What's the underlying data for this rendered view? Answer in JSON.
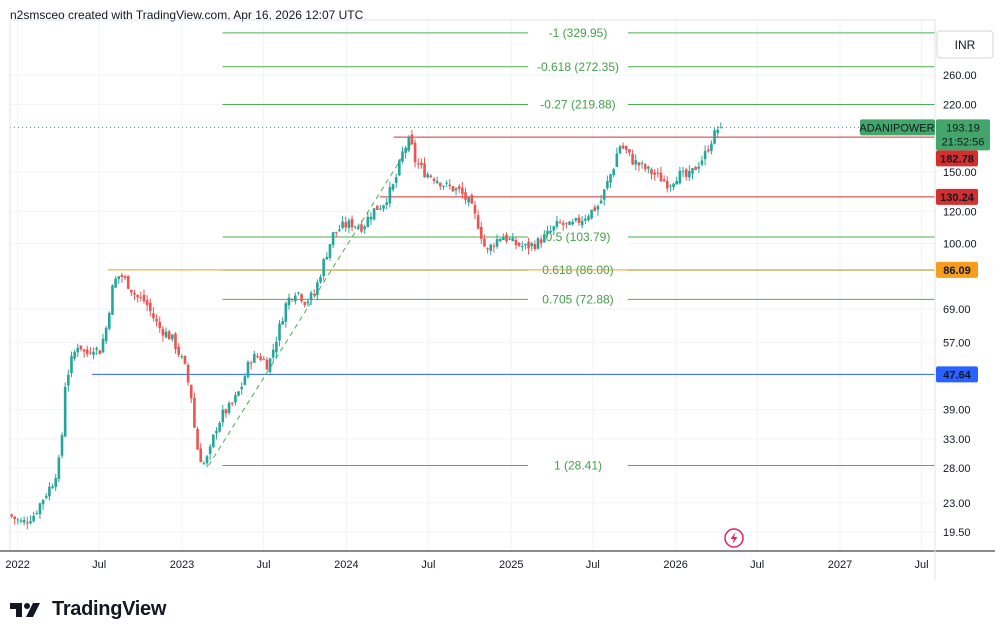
{
  "header": {
    "text": "n2smsceo created with TradingView.com, Apr 16, 2026 12:07 UTC"
  },
  "currency": "INR",
  "brand": "TradingView",
  "colors": {
    "up": "#26a69a",
    "down": "#ef5350",
    "fib": "#4caf50",
    "fib_text": "#43a047",
    "resistance": "#d32f2f",
    "orange": "#f59d1c",
    "blue": "#2962ff",
    "symbol_tag": "#42a66a"
  },
  "chart_data": {
    "type": "candlestick",
    "symbol": "ADANIPOWER",
    "y_scale": "log",
    "y_range": [
      17.5,
      355
    ],
    "x_range": [
      "2021-12-15",
      "2027-07-31"
    ],
    "y_ticks": [
      "260.00",
      "220.00",
      "150.00",
      "120.00",
      "100.00",
      "69.00",
      "57.00",
      "39.00",
      "33.00",
      "28.00",
      "23.00",
      "19.50"
    ],
    "x_ticks": [
      {
        "label": "2022",
        "date": "2022-01-01"
      },
      {
        "label": "Jul",
        "date": "2022-07-01"
      },
      {
        "label": "2023",
        "date": "2023-01-01"
      },
      {
        "label": "Jul",
        "date": "2023-07-01"
      },
      {
        "label": "2024",
        "date": "2024-01-01"
      },
      {
        "label": "Jul",
        "date": "2024-07-01"
      },
      {
        "label": "2025",
        "date": "2025-01-01"
      },
      {
        "label": "Jul",
        "date": "2025-07-01"
      },
      {
        "label": "2026",
        "date": "2026-01-01"
      },
      {
        "label": "Jul",
        "date": "2026-07-01"
      },
      {
        "label": "2027",
        "date": "2027-01-01"
      },
      {
        "label": "Jul",
        "date": "2027-07-01"
      }
    ],
    "fib_levels": [
      {
        "label": "-1 (329.95)",
        "value": 329.95
      },
      {
        "label": "-0.618 (272.35)",
        "value": 272.35
      },
      {
        "label": "-0.27 (219.88)",
        "value": 219.88
      },
      {
        "label": "0.5 (103.79)",
        "value": 103.79
      },
      {
        "label": "0.618 (86.00)",
        "value": 86.0
      },
      {
        "label": "0.705 (72.88)",
        "value": 72.88
      },
      {
        "label": "1 (28.41)",
        "value": 28.41
      }
    ],
    "fib_start_date": "2023-04-01",
    "horizontal_levels": [
      {
        "value": 182.78,
        "label": "182.78",
        "color": "#d32f2f",
        "from": "2024-04-15"
      },
      {
        "value": 130.24,
        "label": "130.24",
        "color": "#d32f2f",
        "from": "2024-03-15"
      },
      {
        "value": 86.09,
        "label": "86.09",
        "color": "#f59d1c",
        "from": "2022-07-20"
      },
      {
        "value": 47.64,
        "label": "47.64",
        "color": "#2962ff",
        "from": "2022-06-15"
      }
    ],
    "last_price": {
      "symbol": "ADANIPOWER",
      "value": 193.19,
      "countdown": "21:52:56"
    },
    "trend_line": [
      {
        "date": "2023-03-01",
        "value": 28.41
      },
      {
        "date": "2024-06-01",
        "value": 182.78
      }
    ],
    "price_path": [
      [
        "2021-12-15",
        21.5
      ],
      [
        "2022-01-15",
        20.5
      ],
      [
        "2022-02-10",
        21.5
      ],
      [
        "2022-03-01",
        23.5
      ],
      [
        "2022-03-25",
        26
      ],
      [
        "2022-04-10",
        30
      ],
      [
        "2022-04-20",
        45
      ],
      [
        "2022-05-05",
        52
      ],
      [
        "2022-05-20",
        57
      ],
      [
        "2022-06-05",
        53
      ],
      [
        "2022-06-20",
        56
      ],
      [
        "2022-07-05",
        54
      ],
      [
        "2022-07-20",
        62
      ],
      [
        "2022-08-05",
        80
      ],
      [
        "2022-08-20",
        84
      ],
      [
        "2022-09-05",
        80
      ],
      [
        "2022-09-25",
        74
      ],
      [
        "2022-10-15",
        72
      ],
      [
        "2022-11-01",
        66
      ],
      [
        "2022-11-15",
        62
      ],
      [
        "2022-12-01",
        60
      ],
      [
        "2022-12-15",
        58
      ],
      [
        "2023-01-10",
        50
      ],
      [
        "2023-01-25",
        42
      ],
      [
        "2023-02-05",
        32
      ],
      [
        "2023-02-20",
        28.5
      ],
      [
        "2023-03-05",
        30
      ],
      [
        "2023-03-20",
        35
      ],
      [
        "2023-04-05",
        38
      ],
      [
        "2023-04-25",
        40
      ],
      [
        "2023-05-15",
        44
      ],
      [
        "2023-06-05",
        52
      ],
      [
        "2023-06-25",
        53
      ],
      [
        "2023-07-15",
        50
      ],
      [
        "2023-08-05",
        60
      ],
      [
        "2023-08-25",
        72
      ],
      [
        "2023-09-15",
        77
      ],
      [
        "2023-10-05",
        72
      ],
      [
        "2023-10-25",
        75
      ],
      [
        "2023-11-15",
        90
      ],
      [
        "2023-12-05",
        105
      ],
      [
        "2023-12-25",
        110
      ],
      [
        "2024-01-15",
        112
      ],
      [
        "2024-02-10",
        110
      ],
      [
        "2024-03-01",
        120
      ],
      [
        "2024-03-25",
        125
      ],
      [
        "2024-04-20",
        140
      ],
      [
        "2024-05-10",
        170
      ],
      [
        "2024-05-25",
        180
      ],
      [
        "2024-06-05",
        160
      ],
      [
        "2024-06-25",
        150
      ],
      [
        "2024-07-20",
        145
      ],
      [
        "2024-08-15",
        138
      ],
      [
        "2024-09-10",
        135
      ],
      [
        "2024-10-05",
        125
      ],
      [
        "2024-10-25",
        110
      ],
      [
        "2024-11-10",
        95
      ],
      [
        "2024-11-25",
        100
      ],
      [
        "2024-12-15",
        105
      ],
      [
        "2025-01-10",
        100
      ],
      [
        "2025-02-05",
        98
      ],
      [
        "2025-03-01",
        100
      ],
      [
        "2025-03-25",
        105
      ],
      [
        "2025-04-20",
        112
      ],
      [
        "2025-05-15",
        110
      ],
      [
        "2025-06-10",
        115
      ],
      [
        "2025-07-01",
        120
      ],
      [
        "2025-07-20",
        125
      ],
      [
        "2025-08-05",
        140
      ],
      [
        "2025-08-20",
        155
      ],
      [
        "2025-09-01",
        175
      ],
      [
        "2025-09-15",
        170
      ],
      [
        "2025-10-01",
        160
      ],
      [
        "2025-10-20",
        155
      ],
      [
        "2025-11-10",
        150
      ],
      [
        "2025-12-01",
        145
      ],
      [
        "2025-12-20",
        140
      ],
      [
        "2026-01-10",
        148
      ],
      [
        "2026-02-01",
        145
      ],
      [
        "2026-02-20",
        155
      ],
      [
        "2026-03-10",
        165
      ],
      [
        "2026-03-25",
        180
      ],
      [
        "2026-04-10",
        193.19
      ]
    ]
  }
}
